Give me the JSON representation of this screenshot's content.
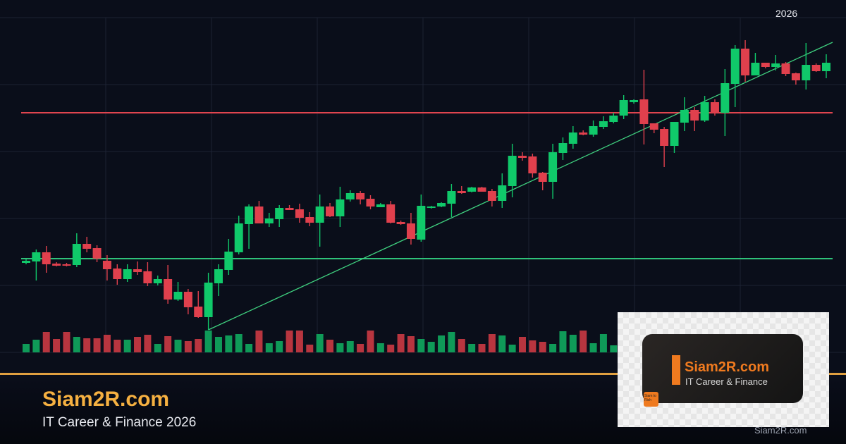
{
  "header": {
    "year_label": "2026"
  },
  "footer": {
    "brand": "Siam2R.com",
    "tagline": "IT Career & Finance 2026",
    "watermark": "Siam2R.com"
  },
  "logo": {
    "name": "Siam2R.com",
    "subtitle": "IT Career & Finance",
    "badge": "Siam to Rich"
  },
  "colors": {
    "background": "#0a0e1a",
    "up": "#10c96a",
    "down": "#e0404d",
    "up_volume": "#0f9a58",
    "down_volume": "#b8353f",
    "grid": "#1c2233",
    "resistance": "#e0454f",
    "support": "#2fc27a",
    "trendline": "#3fd07f",
    "accent": "#e0a040",
    "brand": "#f5b041"
  },
  "chart_data": {
    "type": "candlestick",
    "title": "",
    "xlabel": "",
    "ylabel": "",
    "grid": true,
    "x_tick_labels": [
      "2026"
    ],
    "ylim": [
      0,
      475
    ],
    "ohlc": [
      [
        127,
        132,
        125,
        130
      ],
      [
        129,
        146,
        102,
        142
      ],
      [
        142,
        151,
        113,
        125
      ],
      [
        126,
        128,
        122,
        123
      ],
      [
        125,
        127,
        122,
        123
      ],
      [
        124,
        169,
        121,
        154
      ],
      [
        154,
        164,
        142,
        147
      ],
      [
        148,
        152,
        128,
        133
      ],
      [
        130,
        138,
        102,
        118
      ],
      [
        119,
        125,
        96,
        104
      ],
      [
        104,
        125,
        100,
        118
      ],
      [
        118,
        129,
        110,
        114
      ],
      [
        115,
        128,
        94,
        98
      ],
      [
        98,
        109,
        95,
        104
      ],
      [
        104,
        124,
        69,
        75
      ],
      [
        75,
        100,
        73,
        86
      ],
      [
        86,
        90,
        54,
        64
      ],
      [
        65,
        87,
        49,
        50
      ],
      [
        50,
        113,
        32,
        99
      ],
      [
        98,
        125,
        80,
        118
      ],
      [
        117,
        161,
        110,
        143
      ],
      [
        142,
        194,
        139,
        183
      ],
      [
        182,
        210,
        147,
        207
      ],
      [
        207,
        215,
        183,
        183
      ],
      [
        183,
        198,
        178,
        190
      ],
      [
        189,
        209,
        178,
        205
      ],
      [
        205,
        209,
        202,
        202
      ],
      [
        203,
        211,
        184,
        191
      ],
      [
        192,
        199,
        179,
        184
      ],
      [
        184,
        224,
        150,
        207
      ],
      [
        207,
        212,
        192,
        193
      ],
      [
        193,
        235,
        178,
        217
      ],
      [
        217,
        230,
        214,
        226
      ],
      [
        226,
        229,
        210,
        217
      ],
      [
        218,
        223,
        203,
        207
      ],
      [
        206,
        212,
        206,
        210
      ],
      [
        210,
        215,
        183,
        184
      ],
      [
        185,
        187,
        181,
        182
      ],
      [
        183,
        198,
        153,
        161
      ],
      [
        160,
        224,
        157,
        208
      ],
      [
        205,
        208,
        204,
        207
      ],
      [
        207,
        213,
        206,
        212
      ],
      [
        211,
        239,
        192,
        229
      ],
      [
        229,
        236,
        225,
        226
      ],
      [
        228,
        235,
        227,
        234
      ],
      [
        234,
        235,
        228,
        228
      ],
      [
        229,
        232,
        207,
        215
      ],
      [
        215,
        254,
        205,
        237
      ],
      [
        236,
        296,
        220,
        279
      ],
      [
        279,
        284,
        272,
        276
      ],
      [
        278,
        282,
        248,
        254
      ],
      [
        255,
        256,
        230,
        242
      ],
      [
        242,
        296,
        218,
        284
      ],
      [
        283,
        305,
        273,
        297
      ],
      [
        296,
        321,
        289,
        312
      ],
      [
        312,
        315,
        308,
        309
      ],
      [
        309,
        329,
        306,
        321
      ],
      [
        320,
        335,
        317,
        328
      ],
      [
        327,
        340,
        325,
        336
      ],
      [
        336,
        365,
        331,
        358
      ],
      [
        355,
        359,
        353,
        358
      ],
      [
        359,
        401,
        295,
        324
      ],
      [
        325,
        325,
        311,
        316
      ],
      [
        317,
        320,
        263,
        293
      ],
      [
        293,
        327,
        283,
        327
      ],
      [
        326,
        362,
        314,
        344
      ],
      [
        344,
        348,
        314,
        329
      ],
      [
        329,
        364,
        327,
        355
      ],
      [
        355,
        359,
        336,
        340
      ],
      [
        340,
        402,
        307,
        382
      ],
      [
        381,
        436,
        348,
        431
      ],
      [
        431,
        443,
        384,
        393
      ],
      [
        393,
        425,
        393,
        411
      ],
      [
        411,
        411,
        403,
        405
      ],
      [
        405,
        422,
        400,
        410
      ],
      [
        410,
        412,
        392,
        395
      ],
      [
        396,
        397,
        380,
        386
      ],
      [
        386,
        439,
        373,
        408
      ],
      [
        408,
        410,
        398,
        399
      ],
      [
        399,
        423,
        389,
        411
      ]
    ],
    "volume": [
      12,
      18,
      29,
      19,
      29,
      22,
      20,
      20,
      25,
      18,
      18,
      22,
      25,
      12,
      23,
      18,
      16,
      19,
      31,
      22,
      24,
      26,
      12,
      31,
      13,
      16,
      31,
      31,
      11,
      26,
      18,
      13,
      16,
      12,
      31,
      13,
      11,
      26,
      23,
      19,
      15,
      24,
      29,
      19,
      12,
      12,
      26,
      24,
      11,
      22,
      17,
      15,
      12,
      30,
      25,
      31,
      13,
      26,
      10,
      null,
      null,
      null,
      null,
      null,
      null,
      null,
      null,
      null,
      null,
      null,
      null,
      null,
      null,
      null,
      null,
      null,
      null,
      null,
      null,
      null,
      null
    ],
    "levels": {
      "resistance": 340,
      "support": 133
    },
    "trendline": {
      "from_index": 18,
      "from_price": 32,
      "to_price": 440
    }
  }
}
